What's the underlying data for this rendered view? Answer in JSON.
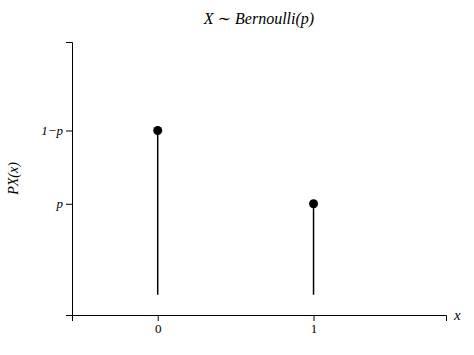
{
  "chart_data": {
    "type": "stem",
    "title": "X ∼ Bernoulli(p)",
    "x_label": "x",
    "y_label": "PX(x)",
    "x": [
      0,
      1
    ],
    "values": [
      0.65,
      0.36
    ],
    "color": "#000000",
    "marker": "circle",
    "xlim": [
      -0.55,
      1.85
    ],
    "ylim": [
      -0.08,
      1.0
    ],
    "xticks": [
      0,
      1
    ],
    "yticks": [
      {
        "value": 0.65,
        "label": "1−p"
      },
      {
        "value": 0.36,
        "label": "p"
      }
    ],
    "grid": false
  }
}
